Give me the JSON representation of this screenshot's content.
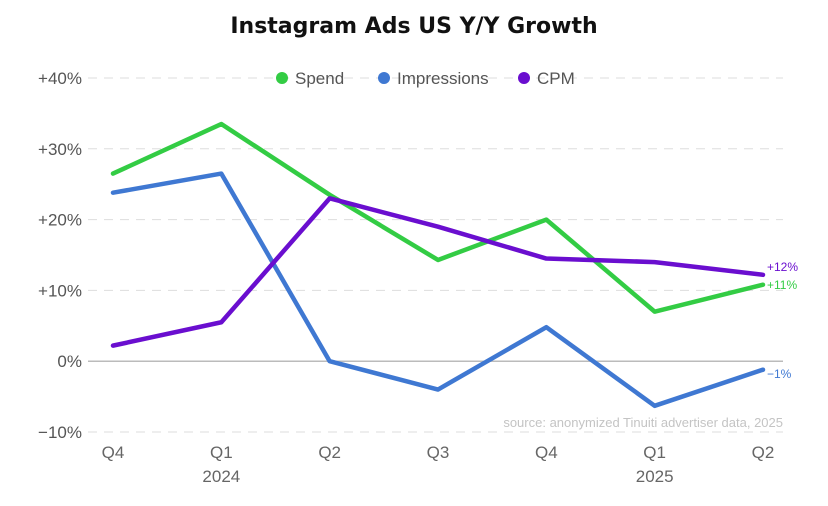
{
  "chart_data": {
    "type": "line",
    "title": "Instagram Ads US Y/Y Growth",
    "categories": [
      {
        "label": "Q4",
        "year": ""
      },
      {
        "label": "Q1",
        "year": "2024"
      },
      {
        "label": "Q2",
        "year": ""
      },
      {
        "label": "Q3",
        "year": ""
      },
      {
        "label": "Q4",
        "year": ""
      },
      {
        "label": "Q1",
        "year": "2025"
      },
      {
        "label": "Q2",
        "year": ""
      }
    ],
    "ylim": [
      -10,
      40
    ],
    "yticks": [
      {
        "value": 40,
        "label": "+40%"
      },
      {
        "value": 30,
        "label": "+30%"
      },
      {
        "value": 20,
        "label": "+20%"
      },
      {
        "value": 10,
        "label": "+10%"
      },
      {
        "value": 0,
        "label": "0%"
      },
      {
        "value": -10,
        "label": "−10%"
      }
    ],
    "grid": "horizontal-dashed",
    "legend_position": "top-center",
    "series": [
      {
        "name": "Spend",
        "color": "#33cc44",
        "values": [
          26.5,
          33.5,
          23.5,
          14.3,
          20,
          7,
          10.8
        ],
        "end_label": "+11%"
      },
      {
        "name": "Impressions",
        "color": "#3f78d2",
        "values": [
          23.8,
          26.5,
          0,
          -4,
          4.8,
          -6.3,
          -1.2
        ],
        "end_label": "−1%"
      },
      {
        "name": "CPM",
        "color": "#6a0ecf",
        "values": [
          2.2,
          5.5,
          23,
          19,
          14.5,
          14,
          12.2
        ],
        "end_label": "+12%"
      }
    ],
    "source": "source: anonymized Tinuiti advertiser data, 2025"
  }
}
